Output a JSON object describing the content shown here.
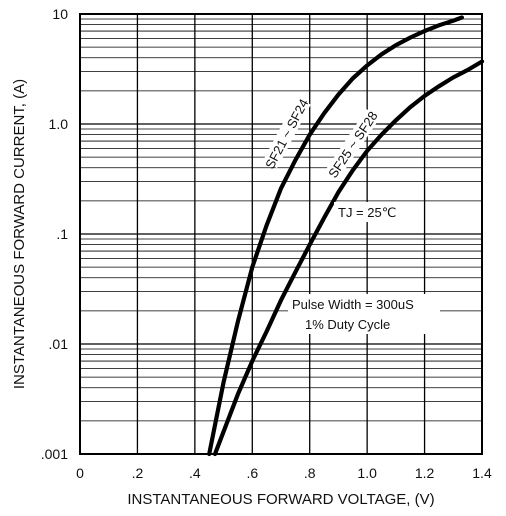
{
  "chart_data": {
    "type": "line",
    "xlabel": "INSTANTANEOUS FORWARD VOLTAGE, (V)",
    "ylabel": "INSTANTANEOUS FORWARD CURRENT, (A)",
    "xlim": [
      0,
      1.4
    ],
    "ylim": [
      0.001,
      10
    ],
    "yscale": "log",
    "grid": true,
    "x_ticks": [
      {
        "value": 0,
        "label": "0"
      },
      {
        "value": 0.2,
        "label": ".2"
      },
      {
        "value": 0.4,
        "label": ".4"
      },
      {
        "value": 0.6,
        "label": ".6"
      },
      {
        "value": 0.8,
        "label": ".8"
      },
      {
        "value": 1.0,
        "label": "1.0"
      },
      {
        "value": 1.2,
        "label": "1.2"
      },
      {
        "value": 1.4,
        "label": "1.4"
      }
    ],
    "y_ticks": [
      {
        "value": 0.001,
        "label": ".001"
      },
      {
        "value": 0.01,
        "label": ".01"
      },
      {
        "value": 0.1,
        "label": ".1"
      },
      {
        "value": 1.0,
        "label": "1.0"
      },
      {
        "value": 10,
        "label": "10"
      }
    ],
    "series": [
      {
        "name": "SF21 ~ SF24",
        "x": [
          0.45,
          0.5,
          0.55,
          0.6,
          0.65,
          0.7,
          0.75,
          0.8,
          0.85,
          0.9,
          0.95,
          1.0,
          1.05,
          1.1,
          1.15,
          1.2,
          1.25,
          1.3,
          1.33
        ],
        "y": [
          0.001,
          0.0045,
          0.016,
          0.05,
          0.12,
          0.26,
          0.47,
          0.8,
          1.25,
          1.85,
          2.6,
          3.4,
          4.3,
          5.2,
          6.1,
          7.0,
          7.9,
          8.7,
          9.3
        ]
      },
      {
        "name": "SF25 ~ SF28",
        "x": [
          0.47,
          0.55,
          0.6,
          0.65,
          0.7,
          0.75,
          0.8,
          0.85,
          0.9,
          0.95,
          1.0,
          1.05,
          1.1,
          1.15,
          1.2,
          1.25,
          1.3,
          1.35,
          1.4
        ],
        "y": [
          0.001,
          0.0035,
          0.007,
          0.013,
          0.025,
          0.045,
          0.08,
          0.14,
          0.24,
          0.38,
          0.57,
          0.8,
          1.08,
          1.42,
          1.8,
          2.2,
          2.65,
          3.1,
          3.7
        ]
      }
    ],
    "curve_labels": [
      "SF21 ~ SF24",
      "SF25 ~ SF28"
    ],
    "annotations": [
      "TJ = 25℃",
      "Pulse Width = 300uS",
      "1% Duty Cycle"
    ]
  }
}
